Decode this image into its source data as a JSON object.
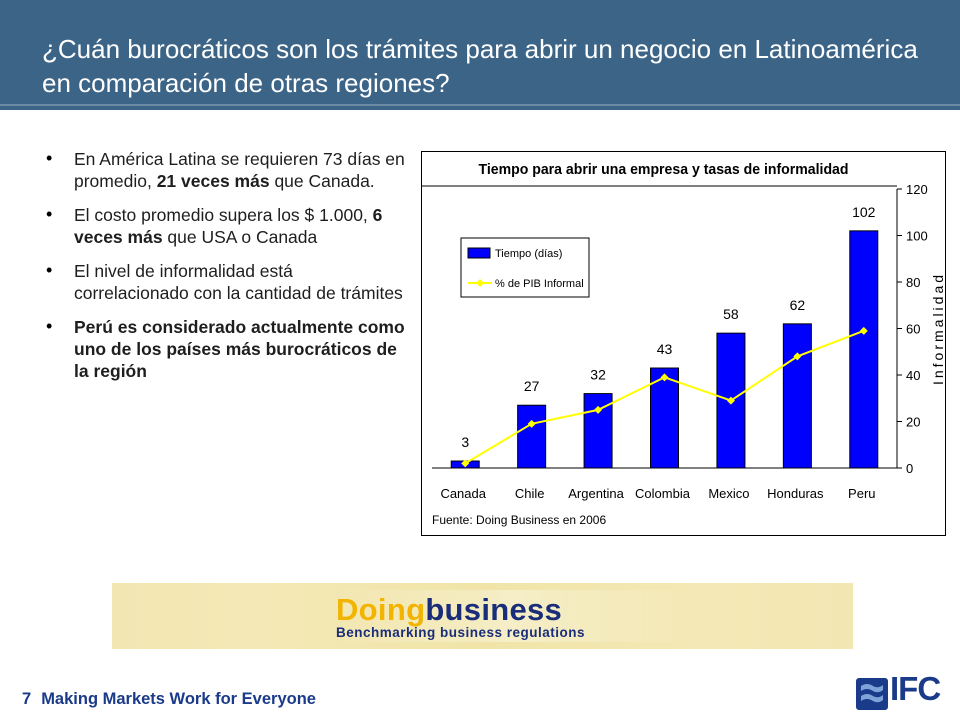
{
  "slide": {
    "title": "¿Cuán burocráticos son los trámites para abrir un negocio en Latinoamérica en comparación de otras regiones?",
    "bullets": [
      {
        "pre": "En América Latina se requieren 73 días en promedio, ",
        "bold": "21 veces más",
        "post": " que Canada."
      },
      {
        "pre": "El costo promedio supera los $ 1.000, ",
        "bold": "6 veces más",
        "post": " que USA o Canada"
      },
      {
        "pre": "El nivel de informalidad está correlacionado con la cantidad de trámites",
        "bold": "",
        "post": ""
      },
      {
        "pre": "",
        "bold": "Perú es considerado actualmente como uno de los países más burocráticos de la región",
        "post": ""
      }
    ],
    "footer": {
      "page_number": "7",
      "tagline": "Making Markets Work for Everyone"
    },
    "banner": {
      "brand_part1": "Doing",
      "brand_part2": "business",
      "tagline": "Benchmarking business regulations"
    },
    "logo_text": "IFC"
  },
  "colors": {
    "header_bg": "#3c6487",
    "bar": "#0000ff",
    "line": "#ffff00",
    "footer_text": "#1a3a8a"
  },
  "chart_data": {
    "type": "bar",
    "title": "Tiempo para abrir una empresa y tasas de informalidad",
    "categories": [
      "Canada",
      "Chile",
      "Argentina",
      "Colombia",
      "Mexico",
      "Honduras",
      "Peru"
    ],
    "series": [
      {
        "name": "Tiempo (días)",
        "type": "bar",
        "values": [
          3,
          27,
          32,
          43,
          58,
          62,
          102
        ],
        "data_labels": [
          "3",
          "27",
          "32",
          "43",
          "58",
          "62",
          "102"
        ]
      },
      {
        "name": "% de PIB Informal",
        "type": "line",
        "axis": "right",
        "values": [
          2,
          19,
          25,
          39,
          29,
          48,
          59
        ]
      }
    ],
    "y2_label": "Informalidad",
    "y2_ticks": [
      "0",
      "20",
      "40",
      "60",
      "80",
      "100",
      "120"
    ],
    "y2lim": [
      0,
      120
    ],
    "ylim": [
      0,
      120
    ],
    "source": "Fuente: Doing Business en 2006",
    "legend_position": "top-left",
    "grid": false
  }
}
